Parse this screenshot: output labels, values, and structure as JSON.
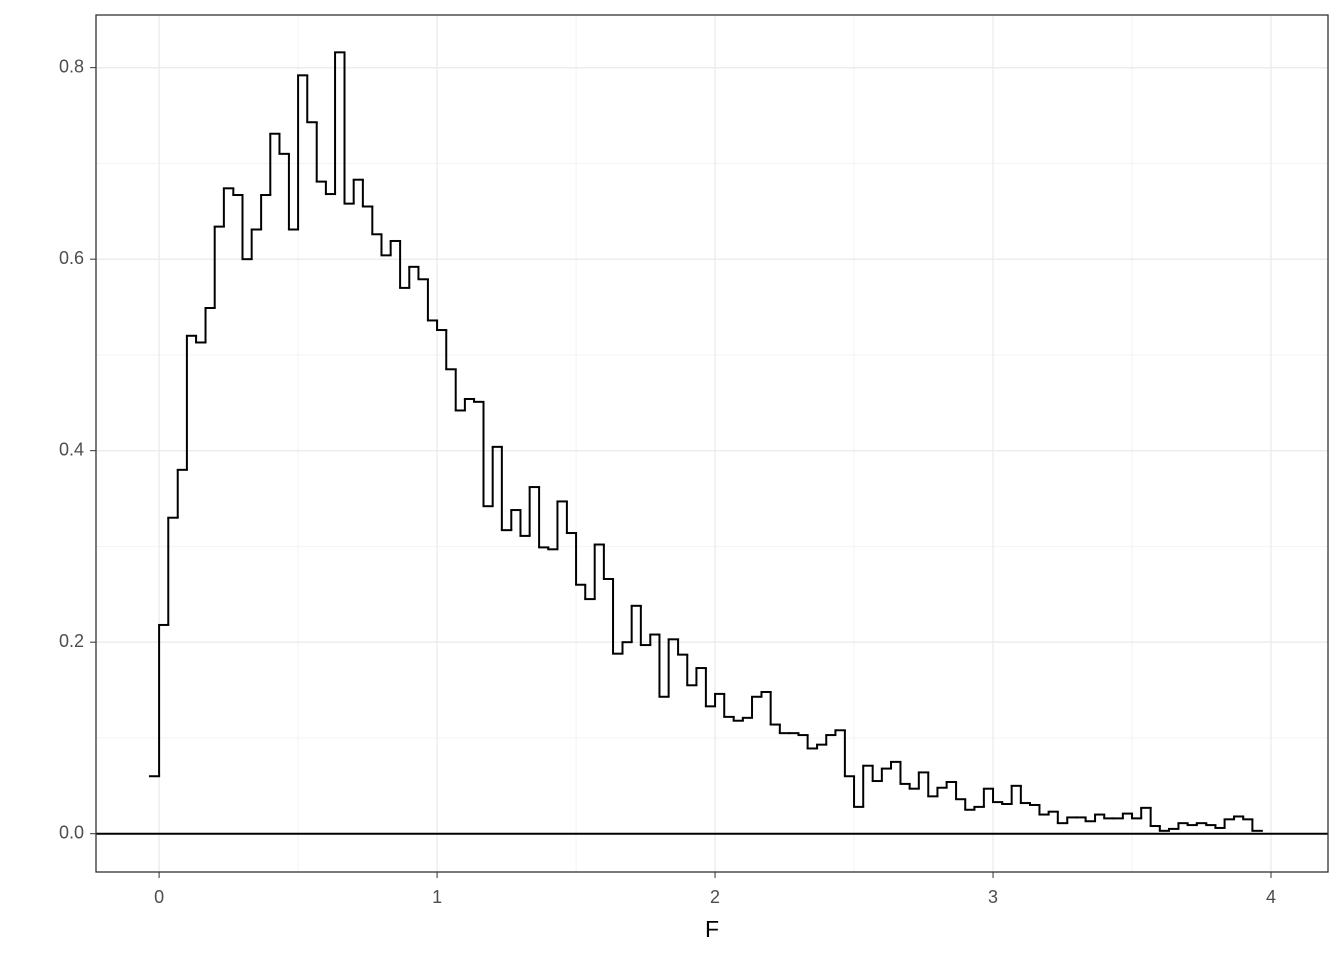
{
  "chart_data": {
    "type": "step-histogram",
    "x_label": "F",
    "bins": [
      -0.033,
      0,
      0.033,
      0.067,
      0.1,
      0.133,
      0.167,
      0.2,
      0.233,
      0.267,
      0.3,
      0.333,
      0.367,
      0.4,
      0.433,
      0.467,
      0.5,
      0.533,
      0.567,
      0.6,
      0.633,
      0.667,
      0.7,
      0.733,
      0.767,
      0.8,
      0.833,
      0.867,
      0.9,
      0.933,
      0.967,
      1,
      1.033,
      1.067,
      1.1,
      1.133,
      1.167,
      1.2,
      1.233,
      1.267,
      1.3,
      1.333,
      1.367,
      1.4,
      1.433,
      1.467,
      1.5,
      1.533,
      1.567,
      1.6,
      1.633,
      1.667,
      1.7,
      1.733,
      1.767,
      1.8,
      1.833,
      1.867,
      1.9,
      1.933,
      1.967,
      2,
      2.033,
      2.067,
      2.1,
      2.133,
      2.167,
      2.2,
      2.233,
      2.267,
      2.3,
      2.333,
      2.367,
      2.4,
      2.433,
      2.467,
      2.5,
      2.533,
      2.567,
      2.6,
      2.633,
      2.667,
      2.7,
      2.733,
      2.767,
      2.8,
      2.833,
      2.867,
      2.9,
      2.933,
      2.967,
      3,
      3.033,
      3.067,
      3.1,
      3.133,
      3.167,
      3.2,
      3.233,
      3.267,
      3.3,
      3.333,
      3.367,
      3.4,
      3.433,
      3.467,
      3.5,
      3.533,
      3.567,
      3.6,
      3.633,
      3.667,
      3.7,
      3.733,
      3.767,
      3.8,
      3.833,
      3.867,
      3.9,
      3.933,
      3.967
    ],
    "values": [
      0.06,
      0.218,
      0.33,
      0.38,
      0.52,
      0.513,
      0.549,
      0.634,
      0.674,
      0.667,
      0.6,
      0.631,
      0.667,
      0.731,
      0.71,
      0.631,
      0.792,
      0.743,
      0.681,
      0.668,
      0.816,
      0.658,
      0.683,
      0.655,
      0.626,
      0.604,
      0.619,
      0.57,
      0.592,
      0.579,
      0.536,
      0.526,
      0.485,
      0.442,
      0.454,
      0.451,
      0.342,
      0.404,
      0.317,
      0.338,
      0.311,
      0.362,
      0.299,
      0.297,
      0.347,
      0.314,
      0.26,
      0.245,
      0.302,
      0.266,
      0.188,
      0.2,
      0.238,
      0.197,
      0.208,
      0.143,
      0.203,
      0.187,
      0.155,
      0.173,
      0.133,
      0.146,
      0.122,
      0.118,
      0.121,
      0.143,
      0.148,
      0.114,
      0.105,
      0.105,
      0.103,
      0.089,
      0.093,
      0.103,
      0.108,
      0.06,
      0.028,
      0.071,
      0.055,
      0.068,
      0.075,
      0.052,
      0.047,
      0.064,
      0.039,
      0.048,
      0.054,
      0.036,
      0.025,
      0.028,
      0.047,
      0.033,
      0.031,
      0.05,
      0.032,
      0.03,
      0.02,
      0.023,
      0.011,
      0.017,
      0.017,
      0.013,
      0.02,
      0.016,
      0.016,
      0.021,
      0.016,
      0.027,
      0.008,
      0.003,
      0.005,
      0.011,
      0.009,
      0.011,
      0.009,
      0.006,
      0.015,
      0.018,
      0.015,
      0.003
    ],
    "color": "#000000",
    "hline": 0,
    "xlim": [
      -0.227,
      4.205
    ],
    "ylim": [
      -0.04,
      0.855
    ],
    "xticks": [
      0,
      1,
      2,
      3,
      4
    ],
    "x_minor_ticks": [
      0.5,
      1.5,
      2.5,
      3.5
    ],
    "yticks": [
      {
        "value": 0,
        "label": "0.0"
      },
      {
        "value": 0.2,
        "label": "0.2"
      },
      {
        "value": 0.4,
        "label": "0.4"
      },
      {
        "value": 0.6,
        "label": "0.6"
      },
      {
        "value": 0.8,
        "label": "0.8"
      }
    ],
    "y_minor_ticks": [
      0.1,
      0.3,
      0.5,
      0.7
    ],
    "grid": true
  }
}
